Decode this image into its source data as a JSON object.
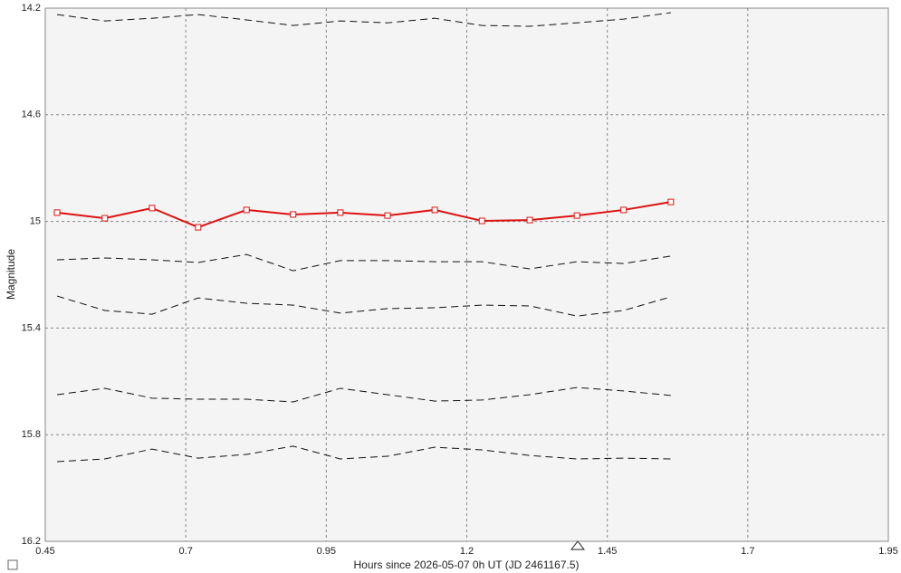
{
  "chart_data": {
    "type": "line",
    "x_label": "Hours since 2026-05-07 0h UT (JD 2461167.5)",
    "y_label": "Magnitude",
    "xlim": [
      0.45,
      1.95
    ],
    "xticks": [
      0.45,
      0.7,
      0.95,
      1.2,
      1.45,
      1.7,
      1.95
    ],
    "ylim": [
      16.2,
      14.2
    ],
    "yticks": [
      14.2,
      14.6,
      15,
      15.4,
      15.8,
      16.2
    ],
    "grid": true,
    "x": [
      0.471,
      0.556,
      0.64,
      0.722,
      0.808,
      0.891,
      0.975,
      1.059,
      1.143,
      1.227,
      1.312,
      1.396,
      1.479,
      1.563
    ],
    "series": [
      {
        "color": "#dd1111",
        "marker": "square",
        "dashed": false,
        "values": [
          14.967,
          14.988,
          14.95,
          15.022,
          14.957,
          14.974,
          14.967,
          14.978,
          14.957,
          14.998,
          14.995,
          14.978,
          14.957,
          14.927
        ]
      },
      {
        "color": "#111111",
        "marker": "none",
        "dashed": true,
        "values": [
          14.224,
          14.248,
          14.238,
          14.224,
          14.244,
          14.265,
          14.248,
          14.255,
          14.238,
          14.265,
          14.268,
          14.255,
          14.241,
          14.217
        ]
      },
      {
        "color": "#111111",
        "marker": "none",
        "dashed": true,
        "values": [
          15.144,
          15.137,
          15.144,
          15.154,
          15.124,
          15.185,
          15.147,
          15.147,
          15.151,
          15.151,
          15.178,
          15.151,
          15.158,
          15.13
        ]
      },
      {
        "color": "#111111",
        "marker": "none",
        "dashed": true,
        "values": [
          15.28,
          15.334,
          15.348,
          15.287,
          15.307,
          15.314,
          15.344,
          15.327,
          15.324,
          15.314,
          15.317,
          15.355,
          15.334,
          15.283
        ]
      },
      {
        "color": "#111111",
        "marker": "none",
        "dashed": true,
        "values": [
          15.65,
          15.626,
          15.663,
          15.667,
          15.667,
          15.677,
          15.626,
          15.65,
          15.674,
          15.67,
          15.65,
          15.623,
          15.636,
          15.653
        ]
      },
      {
        "color": "#111111",
        "marker": "none",
        "dashed": true,
        "values": [
          15.901,
          15.891,
          15.854,
          15.888,
          15.874,
          15.843,
          15.891,
          15.881,
          15.847,
          15.857,
          15.878,
          15.891,
          15.888,
          15.891
        ]
      }
    ]
  }
}
